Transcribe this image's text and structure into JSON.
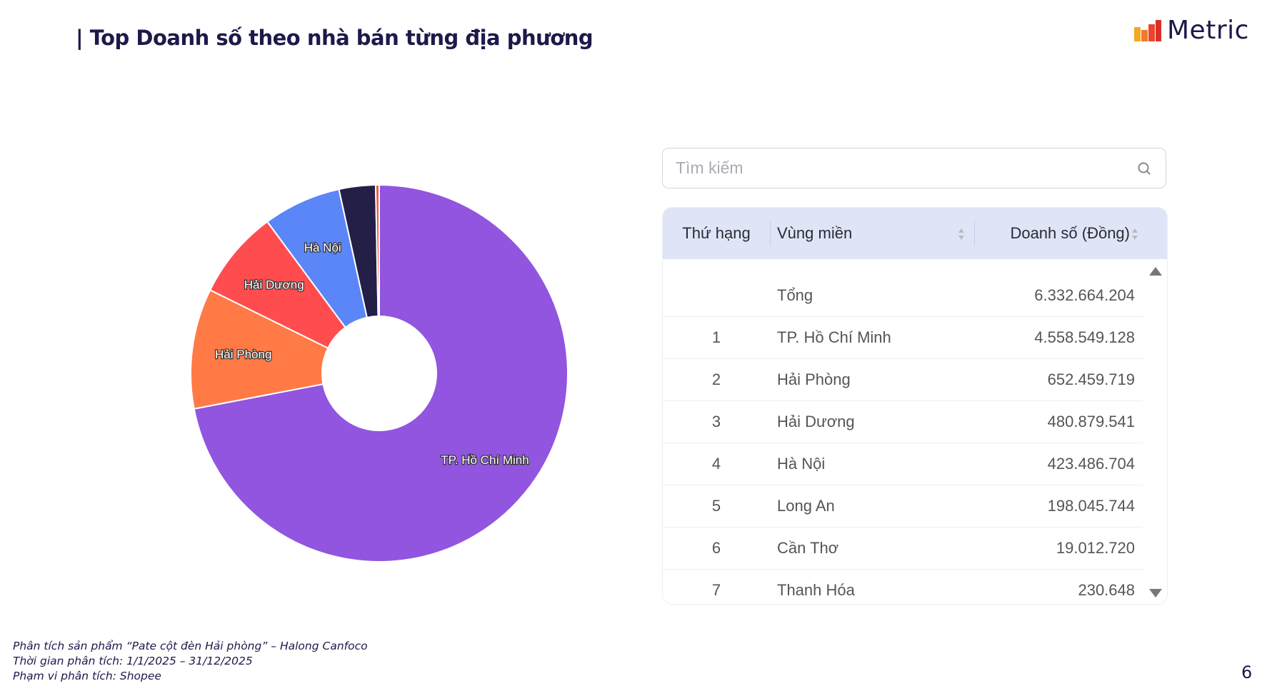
{
  "header": {
    "title": "| Top Doanh số theo nhà bán từng địa phương",
    "logo_text": "Metric"
  },
  "search": {
    "placeholder": "Tìm kiếm",
    "value": "",
    "icon": "search-icon"
  },
  "table": {
    "columns": [
      "Thứ hạng",
      "Vùng miền",
      "Doanh số (Đồng)"
    ],
    "total": {
      "label": "Tổng",
      "value": "6.332.664.204"
    },
    "rows": [
      {
        "rank": "1",
        "region": "TP. Hồ Chí Minh",
        "value": "4.558.549.128"
      },
      {
        "rank": "2",
        "region": "Hải Phòng",
        "value": "652.459.719"
      },
      {
        "rank": "3",
        "region": "Hải Dương",
        "value": "480.879.541"
      },
      {
        "rank": "4",
        "region": "Hà Nội",
        "value": "423.486.704"
      },
      {
        "rank": "5",
        "region": "Long An",
        "value": "198.045.744"
      },
      {
        "rank": "6",
        "region": "Cần Thơ",
        "value": "19.012.720"
      },
      {
        "rank": "7",
        "region": "Thanh Hóa",
        "value": "230.648"
      }
    ]
  },
  "chart_data": {
    "type": "pie",
    "donut": true,
    "start": "top",
    "direction": "clockwise",
    "categories": [
      "TP. Hồ Chí Minh",
      "Hải Phòng",
      "Hải Dương",
      "Hà Nội",
      "Long An",
      "Cần Thơ",
      "Thanh Hóa"
    ],
    "values": [
      4558549128,
      652459719,
      480879541,
      423486704,
      198045744,
      19012720,
      230648
    ],
    "labels_shown": [
      "TP. Hồ Chí Minh",
      "Hải Phòng",
      "Hải Dương",
      "Hà Nội"
    ],
    "colors": [
      "#9155e0",
      "#ff7a45",
      "#ff4d4f",
      "#5b86f7",
      "#231f47",
      "#f4552f",
      "#f5a623"
    ]
  },
  "footer": {
    "lines": [
      "Phân tích sản phẩm “Pate cột đèn Hải phòng” – Halong Canfoco",
      "Thời gian phân tích: 1/1/2025 – 31/12/2025",
      "Phạm vi phân tích: Shopee"
    ],
    "page_number": "6"
  }
}
